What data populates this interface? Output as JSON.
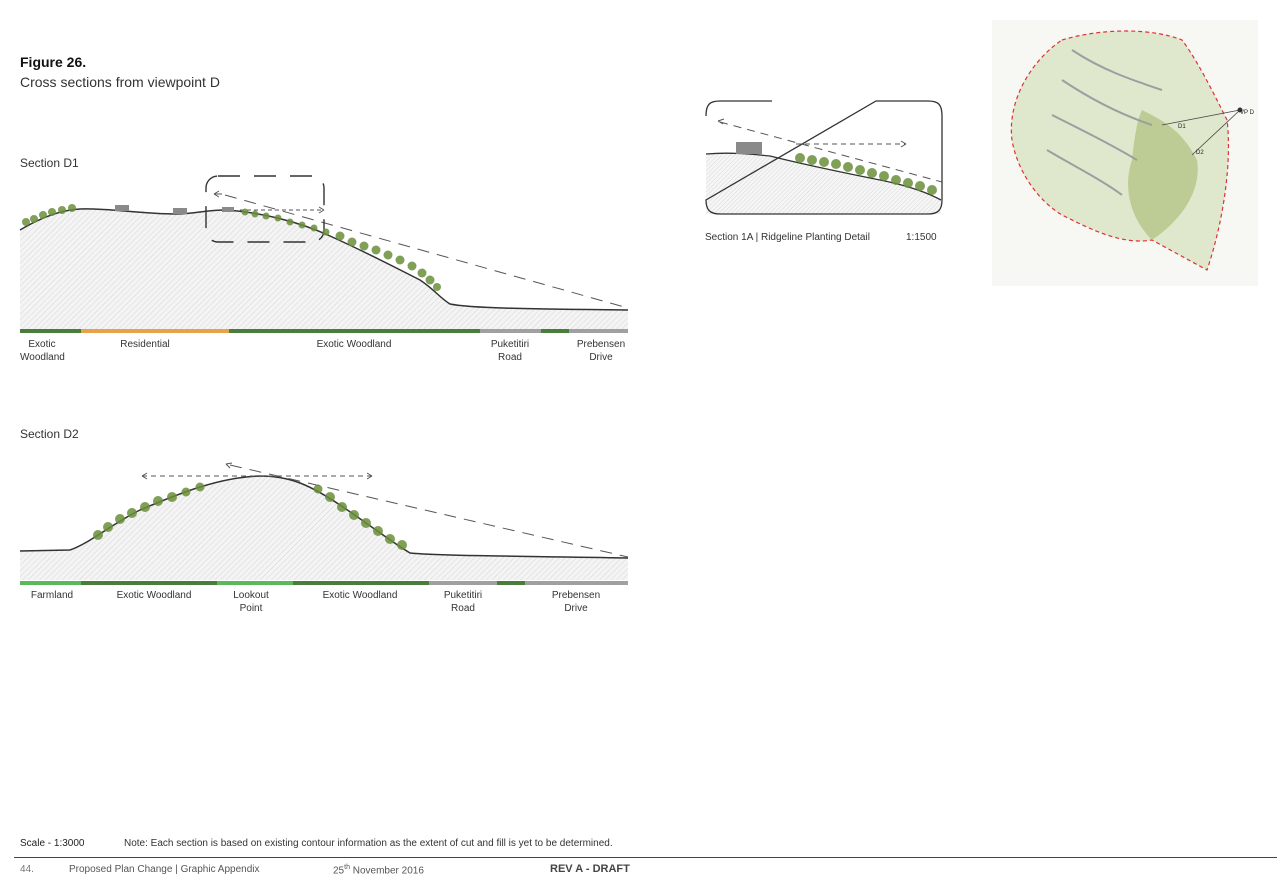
{
  "figure": {
    "number": "Figure 26.",
    "subtitle": "Cross sections from viewpoint D"
  },
  "section_d1": {
    "title": "Section D1",
    "bands": [
      {
        "label_1": "Exotic",
        "label_2": "Woodland",
        "color": "#4a7c3a"
      },
      {
        "label_1": "Residential",
        "label_2": "",
        "color": "#e8a24a"
      },
      {
        "label_1": "Exotic Woodland",
        "label_2": "",
        "color": "#4a7c3a"
      },
      {
        "label_1": "Puketitiri",
        "label_2": "Road",
        "color": "#a0a0a0"
      },
      {
        "label_1": "Prebensen",
        "label_2": "Drive",
        "color": "#a0a0a0"
      }
    ]
  },
  "section_d2": {
    "title": "Section D2",
    "bands": [
      {
        "label_1": "Farmland",
        "label_2": "",
        "color": "#5cb85c"
      },
      {
        "label_1": "Exotic Woodland",
        "label_2": "",
        "color": "#4a7c3a"
      },
      {
        "label_1": "Lookout",
        "label_2": "Point",
        "color": "#5cb85c"
      },
      {
        "label_1": "Exotic Woodland",
        "label_2": "",
        "color": "#4a7c3a"
      },
      {
        "label_1": "Puketitiri",
        "label_2": "Road",
        "color": "#a0a0a0"
      },
      {
        "label_1": "Prebensen",
        "label_2": "Drive",
        "color": "#a0a0a0"
      }
    ]
  },
  "section_1a": {
    "caption": "Section 1A  |  Ridgeline Planting Detail",
    "scale": "1:1500"
  },
  "map": {
    "labels": [
      "D1",
      "D2",
      "VP D"
    ]
  },
  "notes": {
    "scale": "Scale - 1:3000",
    "contour": "Note: Each section is based on existing contour information as the extent of cut and fill is yet to be determined."
  },
  "footer": {
    "page": "44.",
    "title": "Proposed Plan Change  |  Graphic Appendix",
    "date_day": "25",
    "date_suffix": "th",
    "date_rest": " November 2016",
    "revision": "REV A - DRAFT"
  }
}
